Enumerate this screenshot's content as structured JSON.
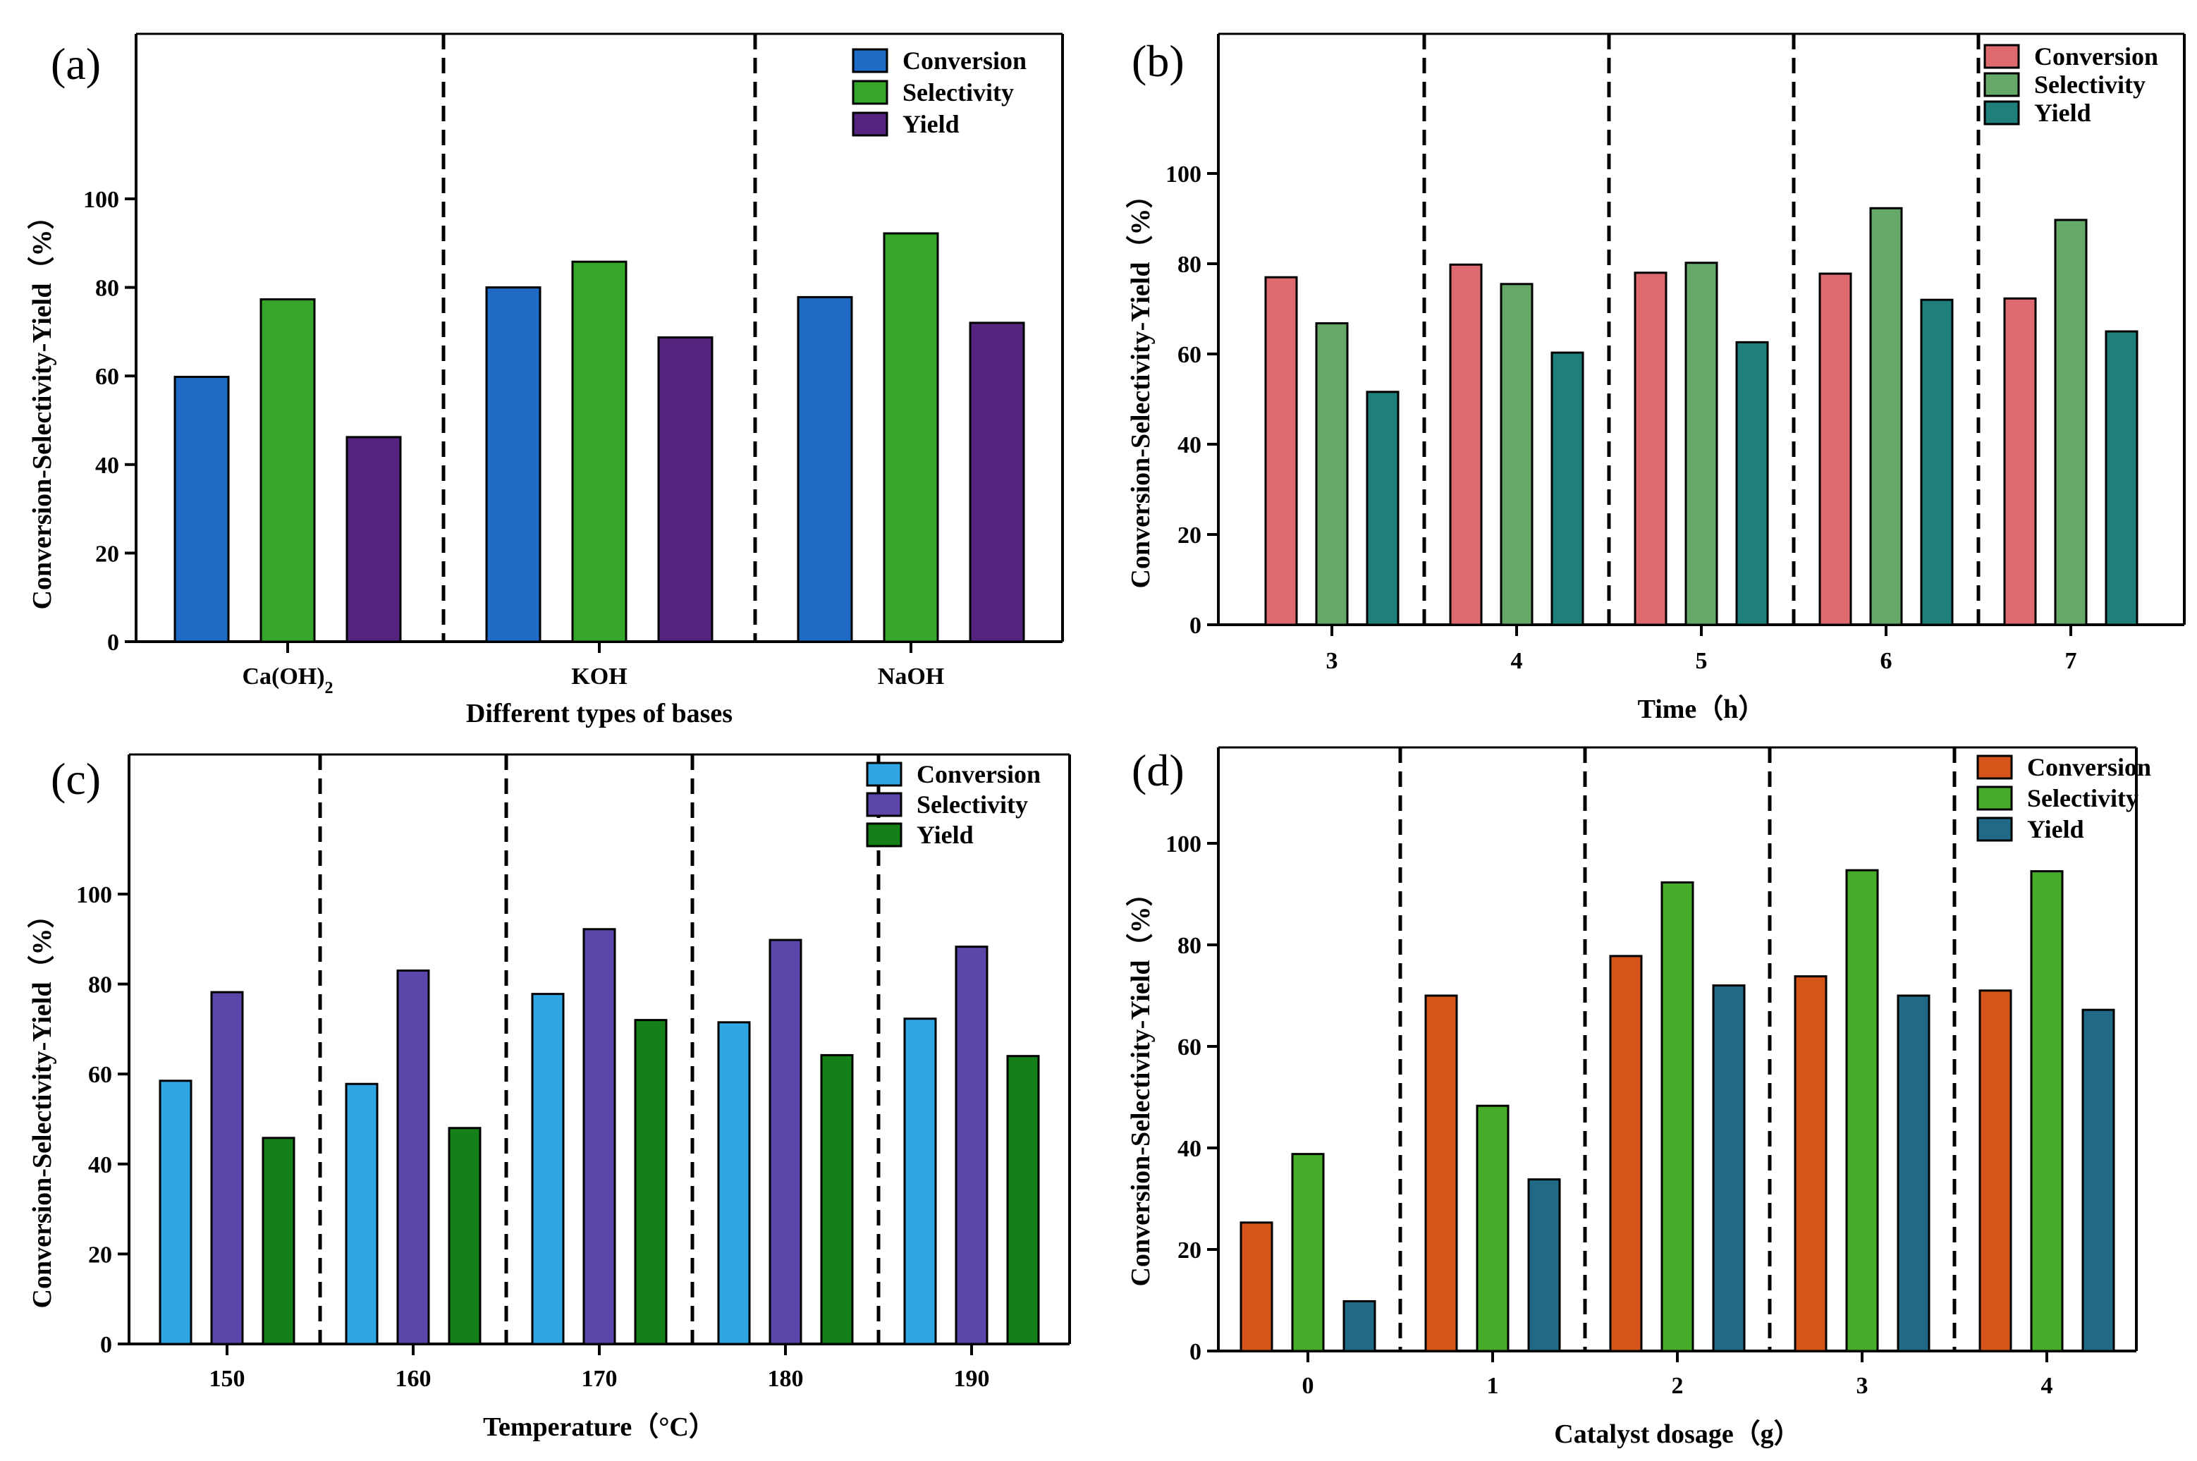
{
  "chart_data": [
    {
      "panel": "(a)",
      "type": "bar",
      "xlabel": "Different types of bases",
      "ylabel": "Conversion-Selectivity-Yield（%）",
      "ylim": [
        0,
        140
      ],
      "yticks": [
        0,
        20,
        40,
        60,
        80,
        100
      ],
      "categories": [
        "Ca(OH)",
        "KOH",
        "NaOH"
      ],
      "category_subscripts": [
        "2",
        "",
        ""
      ],
      "series": [
        {
          "name": "Conversion",
          "color": "#1f6ac2",
          "values": [
            59.8,
            80.0,
            77.8
          ]
        },
        {
          "name": "Selectivity",
          "color": "#36a62a",
          "values": [
            77.3,
            85.8,
            92.2
          ]
        },
        {
          "name": "Yield",
          "color": "#55247e",
          "values": [
            46.2,
            68.7,
            72.0
          ]
        }
      ],
      "legend_position": "top-right",
      "dashed_separators": true
    },
    {
      "panel": "(b)",
      "type": "bar",
      "xlabel": "Time（h）",
      "ylabel": "Conversion-Selectivity-Yield（%）",
      "ylim": [
        0,
        130
      ],
      "yticks": [
        0,
        20,
        40,
        60,
        80,
        100
      ],
      "categories": [
        "3",
        "4",
        "5",
        "6",
        "7"
      ],
      "category_subscripts": [
        "",
        "",
        "",
        "",
        ""
      ],
      "series": [
        {
          "name": "Conversion",
          "color": "#dc6a6e",
          "values": [
            77.0,
            79.8,
            78.0,
            77.8,
            72.3
          ]
        },
        {
          "name": "Selectivity",
          "color": "#66a868",
          "values": [
            66.8,
            75.5,
            80.2,
            92.3,
            89.7
          ]
        },
        {
          "name": "Yield",
          "color": "#1f7f7a",
          "values": [
            51.6,
            60.3,
            62.6,
            72.0,
            65.0
          ]
        }
      ],
      "legend_position": "top-right",
      "dashed_separators": true
    },
    {
      "panel": "(c)",
      "type": "bar",
      "xlabel": "Temperature（°C）",
      "ylabel": "Conversion-Selectivity-Yield（%）",
      "ylim": [
        0,
        130
      ],
      "yticks": [
        0,
        20,
        40,
        60,
        80,
        100
      ],
      "categories": [
        "150",
        "160",
        "170",
        "180",
        "190"
      ],
      "category_subscripts": [
        "",
        "",
        "",
        "",
        ""
      ],
      "series": [
        {
          "name": "Conversion",
          "color": "#30a7e3",
          "values": [
            58.5,
            57.8,
            77.8,
            71.5,
            72.3
          ]
        },
        {
          "name": "Selectivity",
          "color": "#5d46aa",
          "values": [
            78.2,
            83.0,
            92.2,
            89.8,
            88.3
          ]
        },
        {
          "name": "Yield",
          "color": "#168018",
          "values": [
            45.8,
            48.0,
            72.0,
            64.2,
            64.0
          ]
        }
      ],
      "legend_position": "top-right",
      "dashed_separators": true
    },
    {
      "panel": "(d)",
      "type": "bar",
      "xlabel": "Catalyst dosage（g）",
      "ylabel": "Conversion-Selectivity-Yield（%）",
      "ylim": [
        0,
        120
      ],
      "yticks": [
        0,
        20,
        40,
        60,
        80,
        100
      ],
      "categories": [
        "0",
        "1",
        "2",
        "3",
        "4"
      ],
      "category_subscripts": [
        "",
        "",
        "",
        "",
        ""
      ],
      "series": [
        {
          "name": "Conversion",
          "color": "#d4541a",
          "values": [
            25.3,
            70.0,
            77.8,
            73.8,
            71.0
          ]
        },
        {
          "name": "Selectivity",
          "color": "#46ab2a",
          "values": [
            38.8,
            48.3,
            92.3,
            94.7,
            94.5
          ]
        },
        {
          "name": "Yield",
          "color": "#216a85",
          "values": [
            9.8,
            33.8,
            72.0,
            70.0,
            67.2
          ]
        }
      ],
      "legend_position": "top-right",
      "dashed_separators": true
    }
  ]
}
